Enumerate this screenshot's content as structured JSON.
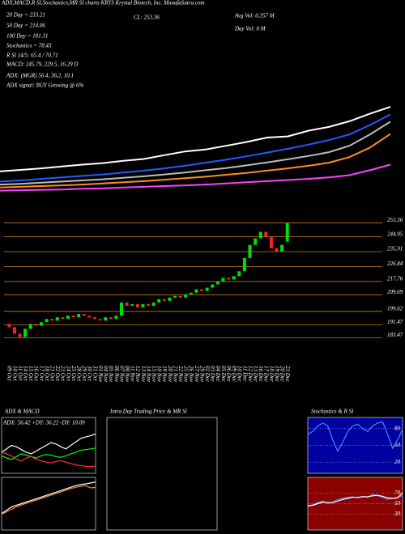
{
  "chart_data": [
    {
      "type": "line",
      "title": "ADX,MACD,R SI,Stochastics,MR SI charts KRYS Krystal Biotech, Inc. MunafaSutra.com",
      "annotations": [
        "20 Day = 233.21",
        "50 Day = 214.06",
        "100 Day = 181.31",
        "Stochastics = 78.43",
        "R SI 14/5: 65.4 / 70.71",
        "MACD: 245.79, 229.5, 16.29 D",
        "ADX: (MGR) 56.4, 36.2, 10.1",
        "ADX signal: BUY Growing @ 6%",
        "CL: 253.36",
        "Avg Vol: 0.357 M",
        "Day Vol: 0 M"
      ],
      "ylim": [
        0,
        520
      ],
      "background": "#000000",
      "series": [
        {
          "color": "#ffffff",
          "values": [
            82,
            86,
            90,
            95,
            100,
            104,
            110,
            115,
            125,
            135,
            140,
            150,
            160,
            172,
            175,
            190,
            200,
            215,
            235,
            253.36
          ]
        },
        {
          "color": "#1e5cff",
          "values": [
            55,
            58,
            62,
            66,
            70,
            74,
            79,
            84,
            90,
            97,
            105,
            113,
            122,
            132,
            142,
            153,
            165,
            180,
            205,
            233.21
          ]
        },
        {
          "color": "#bbbbbb",
          "values": [
            47,
            49,
            52,
            55,
            58,
            61,
            65,
            69,
            74,
            79,
            85,
            91,
            98,
            106,
            114,
            123,
            133,
            150,
            180,
            214.06
          ]
        },
        {
          "color": "#ff8c1a",
          "values": [
            39,
            41,
            43,
            45,
            47,
            50,
            53,
            56,
            60,
            64,
            68,
            73,
            78,
            84,
            90,
            97,
            105,
            120,
            145,
            181.31
          ]
        },
        {
          "color": "#ff40ff",
          "values": [
            31,
            32,
            33,
            34,
            36,
            37,
            39,
            41,
            43,
            45,
            47,
            50,
            53,
            56,
            59,
            62,
            66,
            72,
            85,
            100
          ]
        }
      ]
    },
    {
      "type": "candlestick",
      "up_color": "#00e000",
      "down_color": "#ff2020",
      "line_color": "#c87820",
      "ylim": [
        170,
        262
      ],
      "yticks": [
        253.36,
        244.95,
        235.91,
        226.84,
        217.76,
        209.69,
        199.62,
        191.47,
        183.47
      ],
      "categories": [
        "09 Oct",
        "10 Oct",
        "11 Oct",
        "14 Oct",
        "15 Oct",
        "16 Oct",
        "17 Oct",
        "18 Oct",
        "21 Oct",
        "22 Oct",
        "23 Oct",
        "24 Oct",
        "25 Oct",
        "28 Oct",
        "29 Oct",
        "30 Oct",
        "31 Oct",
        "01 Nov",
        "04 Nov",
        "05 Nov",
        "06 Nov",
        "07 Nov",
        "08 Nov",
        "11 Nov",
        "12 Nov",
        "13 Nov",
        "14 Nov",
        "15 Nov",
        "18 Nov",
        "19 Nov",
        "20 Nov",
        "21 Nov",
        "22 Nov",
        "25 Nov",
        "26 Nov",
        "27 Nov",
        "29 Nov",
        "02 Dec",
        "03 Dec",
        "04 Dec",
        "05 Dec",
        "06 Dec",
        "09 Dec",
        "10 Dec",
        "11 Dec",
        "12 Dec",
        "13 Dec",
        "16 Dec",
        "17 Dec",
        "18 Dec",
        "19 Dec",
        "20 Dec",
        "23 Dec"
      ],
      "open": [
        192,
        190,
        186,
        184,
        189,
        192,
        191,
        193,
        195,
        194,
        196,
        195,
        197,
        196,
        198,
        197,
        196,
        195,
        194,
        196,
        195,
        197,
        205,
        203,
        204,
        202,
        204,
        203,
        205,
        207,
        206,
        208,
        209,
        208,
        210,
        211,
        213,
        212,
        214,
        216,
        218,
        220,
        219,
        221,
        224,
        232,
        240,
        244,
        248,
        245,
        238,
        236,
        242
      ],
      "close": [
        190,
        186,
        184,
        189,
        192,
        191,
        193,
        195,
        194,
        196,
        195,
        197,
        196,
        198,
        197,
        196,
        195,
        194,
        196,
        195,
        197,
        205,
        203,
        204,
        202,
        204,
        203,
        205,
        207,
        206,
        208,
        209,
        208,
        210,
        211,
        213,
        212,
        214,
        216,
        218,
        220,
        219,
        221,
        224,
        232,
        240,
        244,
        248,
        245,
        238,
        236,
        240,
        253.36
      ]
    },
    {
      "type": "line",
      "title": "ADX & MACD",
      "subtitle": "ADX: 56.42 +DY: 36.22 -DY: 10.09",
      "ylim": [
        0,
        80
      ],
      "background": "#000000",
      "series": [
        {
          "color": "#ffffff",
          "values": [
            30,
            35,
            40,
            38,
            34,
            30,
            28,
            32,
            36,
            40,
            44,
            42,
            38,
            35,
            40,
            45,
            50,
            52,
            54,
            56.42
          ]
        },
        {
          "color": "#00ff00",
          "values": [
            25,
            22,
            20,
            24,
            28,
            26,
            24,
            22,
            25,
            27,
            26,
            24,
            23,
            25,
            28,
            30,
            33,
            34,
            35,
            36.22
          ]
        },
        {
          "color": "#ff3030",
          "values": [
            30,
            28,
            25,
            20,
            18,
            22,
            24,
            20,
            18,
            16,
            15,
            17,
            18,
            16,
            14,
            12,
            11,
            10,
            10,
            10.09
          ]
        }
      ]
    },
    {
      "type": "line",
      "ylim": [
        100,
        260
      ],
      "background": "#000000",
      "series": [
        {
          "color": "#ffffff",
          "values": [
            150,
            160,
            170,
            175,
            180,
            185,
            190,
            195,
            200,
            205,
            210,
            215,
            220,
            225,
            230,
            235,
            238,
            240,
            243,
            245.79
          ]
        },
        {
          "color": "#ff8c1a",
          "values": [
            148,
            155,
            163,
            170,
            176,
            181,
            186,
            191,
            196,
            201,
            206,
            211,
            216,
            221,
            226,
            230,
            233,
            235,
            228,
            229.5
          ]
        }
      ]
    },
    {
      "type": "line",
      "title": "Intra Day Trading Price & MR SI",
      "background": "#000000",
      "series": []
    },
    {
      "type": "line",
      "title": "Stochastics & R SI",
      "ylim": [
        0,
        100
      ],
      "yticks": [
        20,
        50,
        80
      ],
      "grid": true,
      "background": "#0000a0",
      "series": [
        {
          "color": "#3d8bff",
          "values": [
            70,
            75,
            85,
            90,
            85,
            60,
            40,
            55,
            75,
            85,
            88,
            80,
            75,
            85,
            90,
            92,
            70,
            45,
            60,
            78.43
          ]
        }
      ]
    },
    {
      "type": "line",
      "ylim": [
        0,
        100
      ],
      "yticks": [
        30,
        50,
        70
      ],
      "grid": true,
      "background": "#8b0000",
      "series": [
        {
          "color": "#3d8bff",
          "values": [
            45,
            48,
            52,
            55,
            50,
            53,
            58,
            60,
            62,
            63,
            61,
            64,
            62,
            68,
            65,
            62,
            58,
            60,
            62,
            65.4
          ]
        },
        {
          "color": "#ffffff",
          "values": [
            46,
            47,
            50,
            53,
            52,
            52,
            55,
            58,
            60,
            62,
            62,
            63,
            63,
            65,
            66,
            64,
            61,
            60,
            61,
            70.71
          ]
        }
      ]
    }
  ]
}
